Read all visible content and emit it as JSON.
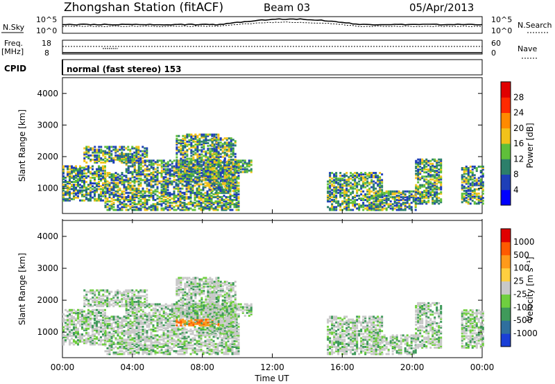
{
  "header": {
    "station": "Zhongshan Station (fitACF)",
    "beam": "Beam 03",
    "date": "05/Apr/2013"
  },
  "strip_labels": {
    "nsky": "N.Sky",
    "nsky_top": "10^5",
    "nsky_bottom": "10^0",
    "nsearch": "N.Search",
    "nsearch_top": "10^5",
    "nsearch_bottom": "10^0",
    "freq_line1": "Freq.",
    "freq_line2": "[MHz]",
    "freq_top": "18",
    "freq_bottom": "8",
    "nave": "Nave",
    "nave_top": "60",
    "nave_bottom": "0",
    "cpid": "CPID",
    "cpid_text": "normal (fast stereo) 153"
  },
  "chart_data": [
    {
      "type": "heatmap",
      "ylabel": "Slant Range [km]",
      "ylim": [
        200,
        4500
      ],
      "yticks": [
        "4000",
        "3000",
        "2000",
        "1000"
      ],
      "colorbar": {
        "label": "Power [dB]",
        "ticks": [
          "28",
          "24",
          "20",
          "16",
          "12",
          "8",
          "4"
        ],
        "colors": [
          "#0000ff",
          "#1e3fb8",
          "#2c7f6a",
          "#5fbf3a",
          "#f2c21a",
          "#ff8a00",
          "#ff2a00",
          "#e00000"
        ]
      }
    },
    {
      "type": "heatmap",
      "ylabel": "Slant Range [km]",
      "ylim": [
        200,
        4500
      ],
      "yticks": [
        "4000",
        "3000",
        "2000",
        "1000"
      ],
      "colorbar": {
        "label": "Velocity [m s⁻¹]",
        "ticks": [
          "1000",
          "500",
          "100",
          "25",
          "-25",
          "-100",
          "-500",
          "-1000"
        ],
        "colors": [
          "#1a3fd6",
          "#2f6f9e",
          "#3f9a5a",
          "#6fcf3f",
          "#c8c8c8",
          "#ffcf3f",
          "#ff9a1a",
          "#ff5a00",
          "#e00000"
        ]
      }
    }
  ],
  "xaxis": {
    "ticks": [
      "00:00",
      "04:00",
      "08:00",
      "12:00",
      "16:00",
      "20:00",
      "00:00"
    ],
    "label": "Time UT"
  }
}
